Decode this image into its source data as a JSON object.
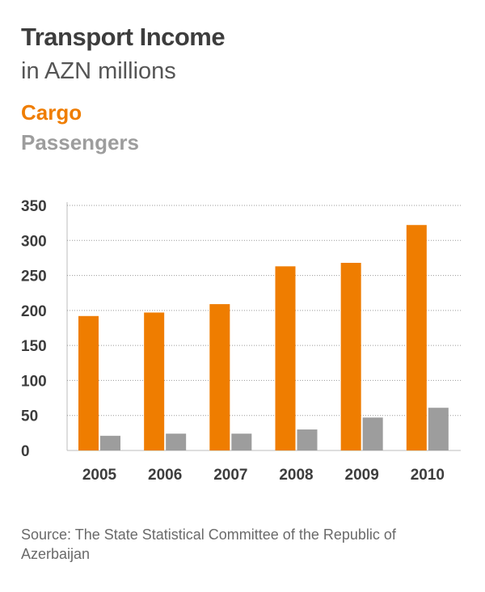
{
  "chart_data": {
    "type": "bar",
    "title": "Transport Income",
    "subtitle": "in AZN millions",
    "categories": [
      "2005",
      "2006",
      "2007",
      "2008",
      "2009",
      "2010"
    ],
    "series": [
      {
        "name": "Cargo",
        "values": [
          192,
          197,
          209,
          263,
          268,
          322
        ],
        "color": "#ef7d00"
      },
      {
        "name": "Passengers",
        "values": [
          21,
          24,
          24,
          30,
          47,
          61
        ],
        "color": "#9d9d9d"
      }
    ],
    "yticks": [
      0,
      50,
      100,
      150,
      200,
      250,
      300,
      350
    ],
    "ylim": [
      0,
      350
    ],
    "grid": true,
    "legend": "top-left"
  },
  "source": "Source: The State Statistical Committee of the Republic of Azerbaijan"
}
